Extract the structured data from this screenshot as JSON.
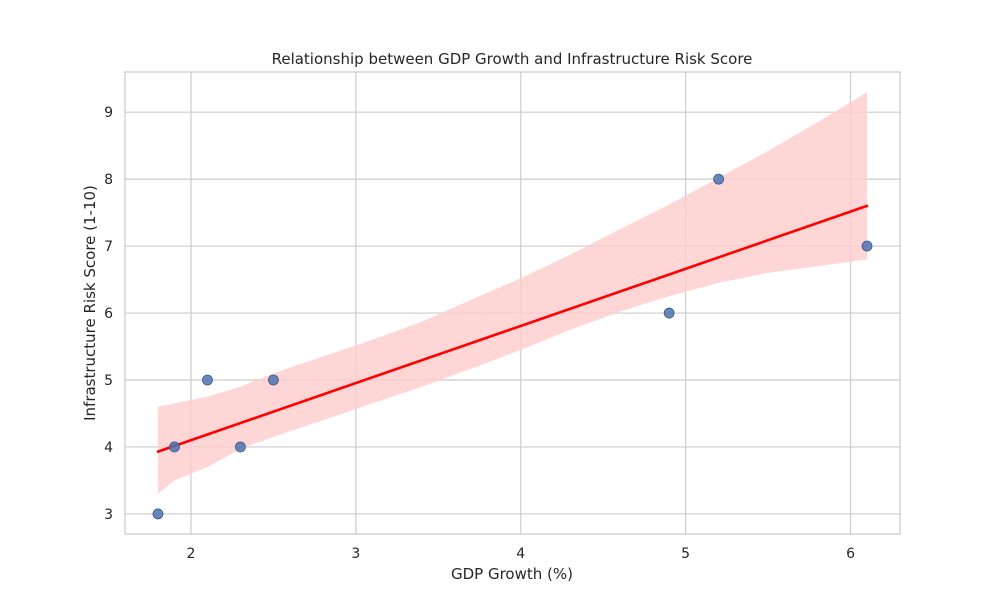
{
  "chart_data": {
    "type": "scatter",
    "title": "Relationship between GDP Growth and Infrastructure Risk Score",
    "xlabel": "GDP Growth (%)",
    "ylabel": "Infrastructure Risk Score (1-10)",
    "xlim": [
      1.6,
      6.3
    ],
    "ylim": [
      2.7,
      9.6
    ],
    "xticks": [
      2,
      3,
      4,
      5,
      6
    ],
    "yticks": [
      3,
      4,
      5,
      6,
      7,
      8,
      9
    ],
    "grid": true,
    "points": {
      "x": [
        1.8,
        1.9,
        2.1,
        2.3,
        2.5,
        4.9,
        5.2,
        6.1
      ],
      "y": [
        3,
        4,
        5,
        4,
        5,
        6,
        8,
        7
      ]
    },
    "regression": {
      "x": [
        1.8,
        6.1
      ],
      "y": [
        3.93,
        7.6
      ]
    },
    "confidence_band": {
      "x": [
        1.8,
        1.9,
        2.1,
        2.3,
        2.5,
        2.8,
        3.1,
        3.4,
        3.7,
        4.0,
        4.3,
        4.6,
        4.9,
        5.2,
        5.5,
        5.8,
        6.1
      ],
      "upper": [
        4.6,
        4.65,
        4.75,
        4.9,
        5.1,
        5.35,
        5.6,
        5.87,
        6.2,
        6.52,
        6.87,
        7.25,
        7.62,
        8.02,
        8.42,
        8.85,
        9.3
      ],
      "lower": [
        3.3,
        3.5,
        3.7,
        3.97,
        4.15,
        4.4,
        4.65,
        4.9,
        5.17,
        5.45,
        5.75,
        6.02,
        6.25,
        6.45,
        6.6,
        6.7,
        6.8
      ]
    },
    "colors": {
      "points": "#4c72b0",
      "regression_line": "#ff0000",
      "band": "#ffcccc",
      "grid": "#cccccc",
      "frame": "#cccccc"
    }
  }
}
